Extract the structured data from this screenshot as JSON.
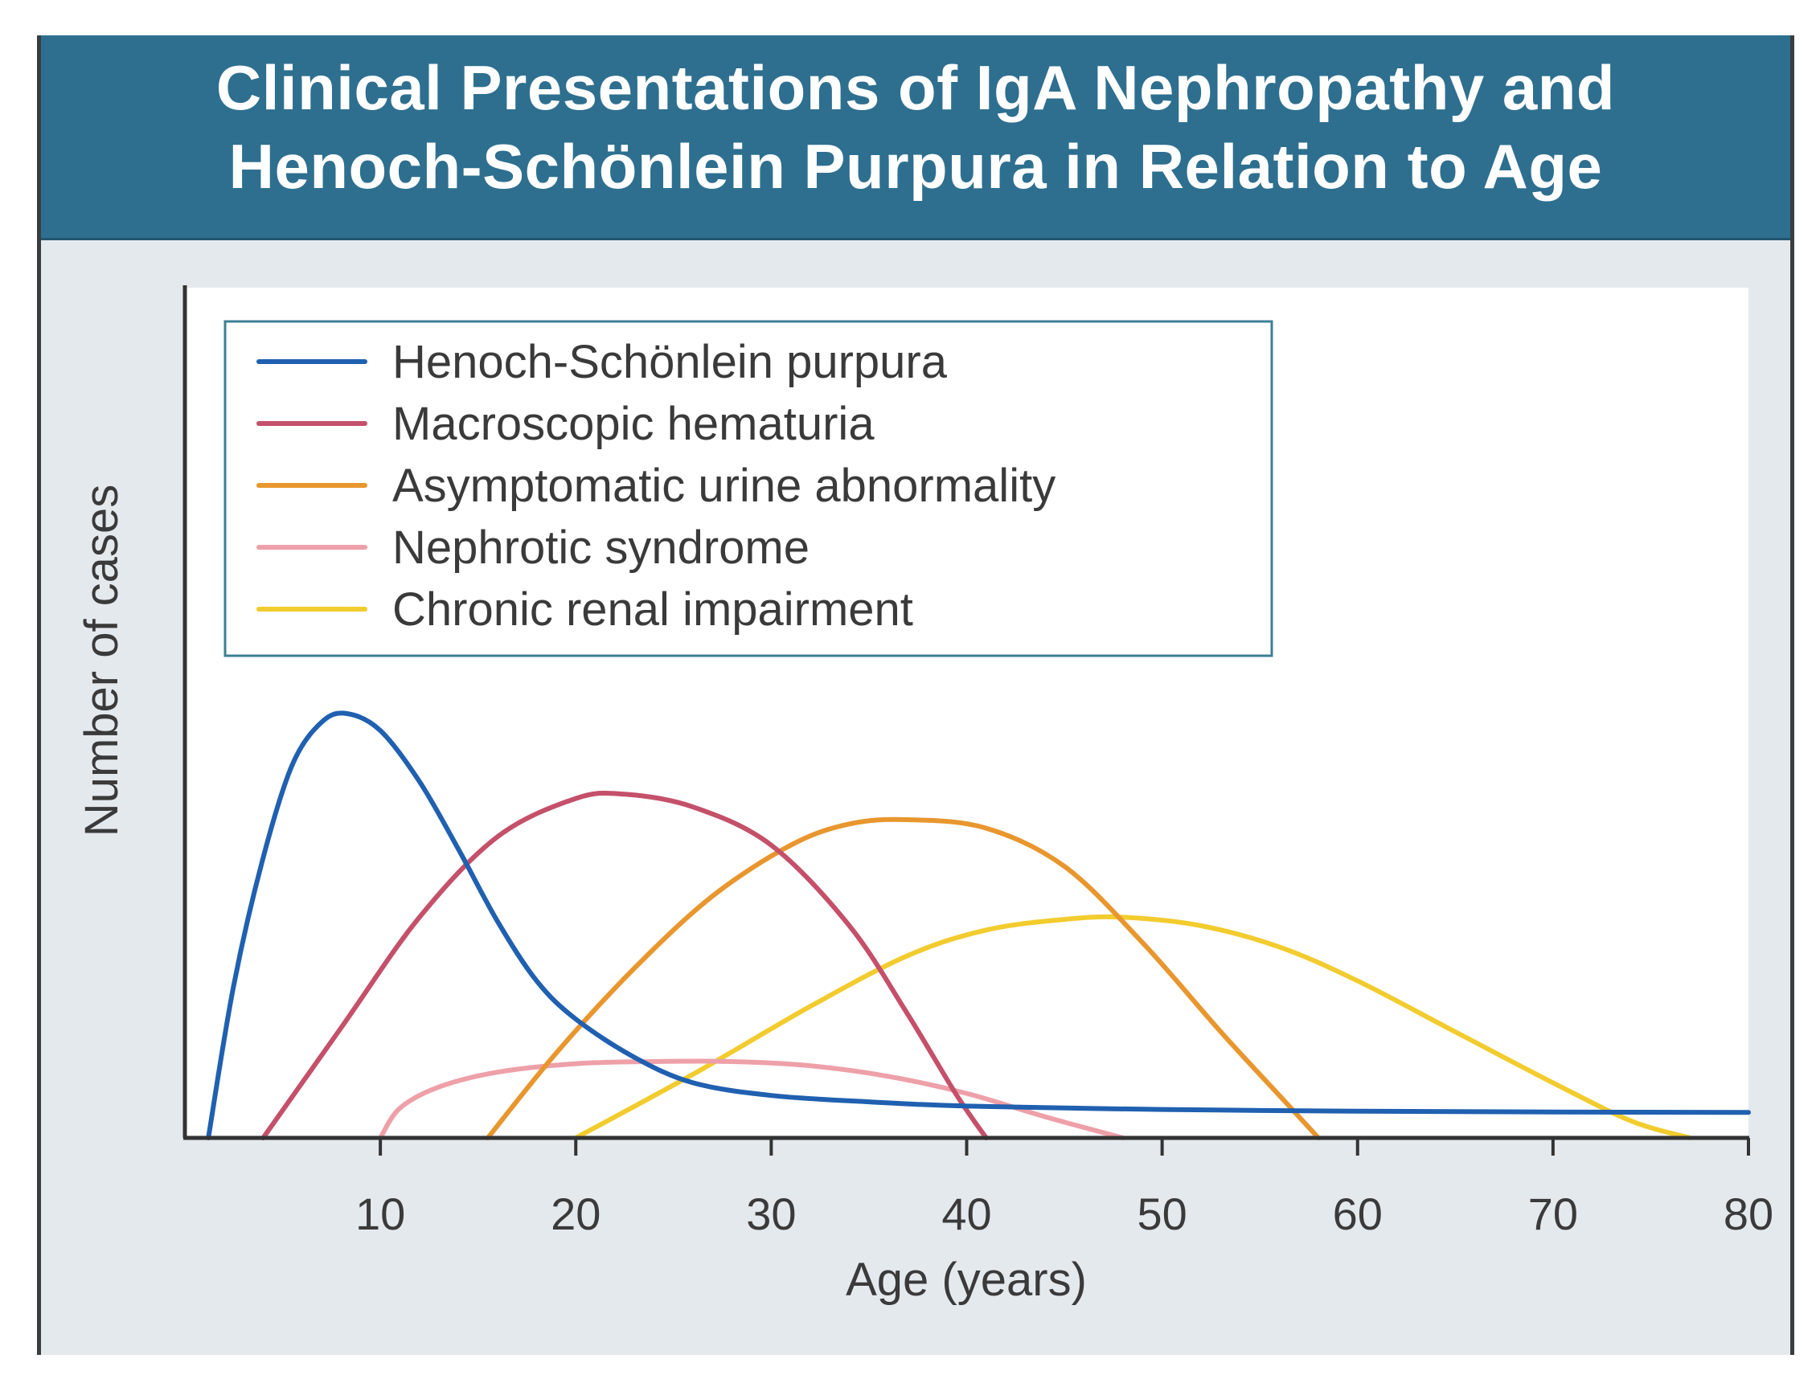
{
  "chart_data": {
    "type": "line",
    "title": "Clinical Presentations of IgA Nephropathy and Henoch-Schönlein Purpura in Relation to Age",
    "title_lines": [
      "Clinical Presentations of IgA Nephropathy and",
      "Henoch-Schönlein Purpura in Relation to Age"
    ],
    "xlabel": "Age (years)",
    "ylabel": "Number of cases",
    "xlim": [
      0,
      80
    ],
    "ylim": [
      0,
      100
    ],
    "x_ticks": [
      10,
      20,
      30,
      40,
      50,
      60,
      70,
      80
    ],
    "y_ticks_shown": false,
    "legend_position": "top-left",
    "series": [
      {
        "name": "Henoch-Schönlein purpura",
        "color": "#2060b0",
        "x": [
          1.2,
          2.5,
          4,
          5.5,
          7,
          8.3,
          10,
          12,
          14,
          16,
          18,
          20,
          23,
          26,
          30,
          35,
          40,
          50,
          60,
          70,
          80
        ],
        "y": [
          0,
          36,
          66,
          88,
          98,
          100,
          96,
          84,
          68,
          51,
          37,
          28,
          19,
          13,
          10,
          8.5,
          7.5,
          6.7,
          6.3,
          6.1,
          6.0
        ]
      },
      {
        "name": "Macroscopic hematuria",
        "color": "#c4506a",
        "x": [
          4,
          8,
          12,
          16,
          20,
          22.5,
          26,
          30,
          34,
          37,
          39.5,
          41
        ],
        "y": [
          0,
          26,
          52,
          71,
          80,
          81,
          78,
          69,
          50,
          29,
          10,
          0
        ]
      },
      {
        "name": "Asymptomatic urine abnormality",
        "color": "#e8962e",
        "x": [
          15.5,
          19,
          23,
          27,
          31,
          34,
          37,
          41,
          45,
          49,
          53,
          56,
          58
        ],
        "y": [
          0,
          20,
          40,
          57,
          69,
          74,
          75,
          73,
          64,
          46,
          25,
          10,
          0
        ]
      },
      {
        "name": "Nephrotic syndrome",
        "color": "#eea0a8",
        "x": [
          10,
          11,
          13,
          16,
          20,
          24,
          28,
          32,
          36,
          40,
          44,
          48
        ],
        "y": [
          0,
          7,
          12,
          15.5,
          17.5,
          18,
          18,
          17,
          14.5,
          10.5,
          5,
          0
        ]
      },
      {
        "name": "Chronic renal impairment",
        "color": "#f2cc2e",
        "x": [
          20,
          26,
          32,
          37,
          41,
          45,
          48,
          52,
          56,
          60,
          65,
          70,
          74,
          77
        ],
        "y": [
          0,
          15,
          31,
          43,
          49,
          51.5,
          52,
          50,
          45,
          37,
          25,
          13,
          4,
          0
        ]
      }
    ]
  }
}
